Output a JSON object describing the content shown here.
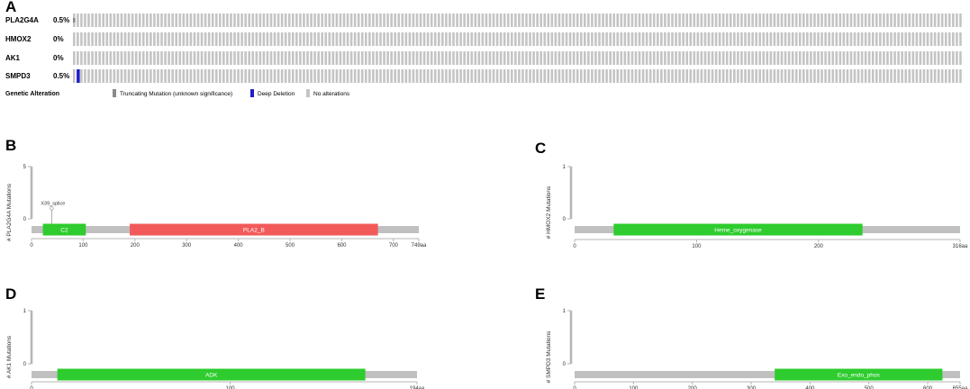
{
  "panels": {
    "A": "A",
    "B": "B",
    "C": "C",
    "D": "D",
    "E": "E"
  },
  "oncoprint": {
    "tracks": [
      {
        "gene": "PLA2G4A",
        "pct": "0.5%",
        "alteration": "truncating"
      },
      {
        "gene": "HMOX2",
        "pct": "0%",
        "alteration": "none"
      },
      {
        "gene": "AK1",
        "pct": "0%",
        "alteration": "none"
      },
      {
        "gene": "SMPD3",
        "pct": "0.5%",
        "alteration": "deep_deletion"
      }
    ],
    "legend": {
      "title": "Genetic Alteration",
      "items": [
        {
          "label": "Truncating Mutation (unknown significance)",
          "color": "#8a8a8a"
        },
        {
          "label": "Deep Deletion",
          "color": "#1f1fc8"
        },
        {
          "label": "No alterations",
          "color": "#c4c4c4"
        }
      ]
    },
    "colors": {
      "cell": "#c4c4c4",
      "truncating": "#8a8a8a",
      "deletion": "#1f1fc8"
    }
  },
  "lollipops": [
    {
      "id": "B",
      "ylabel": "# PLA2G4A Mutations",
      "yticks": [
        "5",
        "0"
      ],
      "length": 749,
      "length_label": "749aa",
      "xticks": [
        0,
        100,
        200,
        300,
        400,
        500,
        600,
        700
      ],
      "domains": [
        {
          "name": "C2",
          "start": 22,
          "end": 105,
          "color": "#2ecc2e"
        },
        {
          "name": "PLA2_B",
          "start": 190,
          "end": 670,
          "color": "#f25a5a"
        }
      ],
      "mutations": [
        {
          "label": "X39_splice",
          "pos": 39,
          "count": 1
        }
      ]
    },
    {
      "id": "C",
      "ylabel": "# HMOX2 Mutations",
      "yticks": [
        "1",
        "0"
      ],
      "length": 316,
      "length_label": "316aa",
      "xticks": [
        0,
        100,
        200
      ],
      "domains": [
        {
          "name": "Heme_oxygenase",
          "start": 32,
          "end": 236,
          "color": "#2ecc2e"
        }
      ],
      "mutations": []
    },
    {
      "id": "D",
      "ylabel": "# AK1 Mutations",
      "yticks": [
        "1",
        "0"
      ],
      "length": 194,
      "length_label": "194aa",
      "xticks": [
        0,
        100
      ],
      "domains": [
        {
          "name": "ADK",
          "start": 13,
          "end": 168,
          "color": "#2ecc2e"
        }
      ],
      "mutations": []
    },
    {
      "id": "E",
      "ylabel": "# SMPD3 Mutations",
      "yticks": [
        "1",
        "0"
      ],
      "length": 655,
      "length_label": "655aa",
      "xticks": [
        0,
        100,
        200,
        300,
        400,
        500,
        600
      ],
      "domains": [
        {
          "name": "Exo_endo_phos",
          "start": 340,
          "end": 625,
          "color": "#2ecc2e"
        }
      ],
      "mutations": []
    }
  ]
}
